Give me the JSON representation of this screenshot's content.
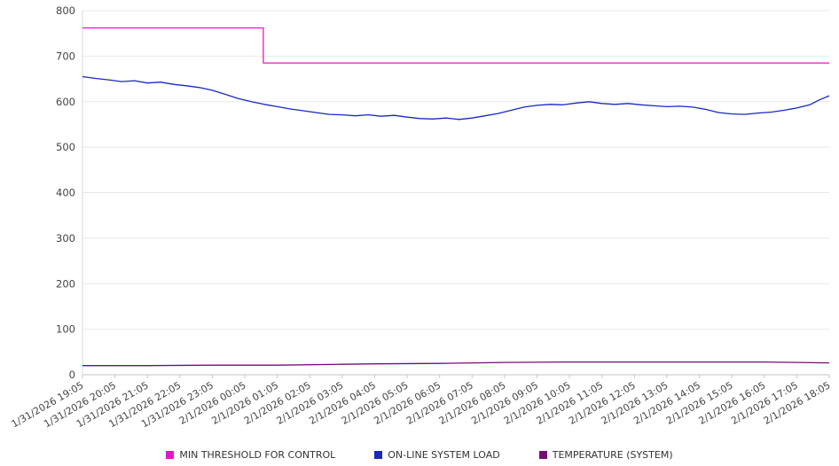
{
  "chart_data": {
    "type": "line",
    "title": "",
    "xlabel": "",
    "ylabel": "",
    "ylim": [
      0,
      800
    ],
    "y_tick_step": 100,
    "grid": true,
    "legend_position": "bottom",
    "categories": [
      "1/31/2026 19:05",
      "1/31/2026 20:05",
      "1/31/2026 21:05",
      "1/31/2026 22:05",
      "1/31/2026 23:05",
      "2/1/2026 00:05",
      "2/1/2026 01:05",
      "2/1/2026 02:05",
      "2/1/2026 03:05",
      "2/1/2026 04:05",
      "2/1/2026 05:05",
      "2/1/2026 06:05",
      "2/1/2026 07:05",
      "2/1/2026 08:05",
      "2/1/2026 09:05",
      "2/1/2026 10:05",
      "2/1/2026 11:05",
      "2/1/2026 12:05",
      "2/1/2026 13:05",
      "2/1/2026 14:05",
      "2/1/2026 15:05",
      "2/1/2026 16:05",
      "2/1/2026 17:05",
      "2/1/2026 18:05"
    ],
    "series": [
      {
        "name": "MIN THRESHOLD FOR CONTROL",
        "color": "#f012c8",
        "points": [
          [
            0,
            762
          ],
          [
            5.57,
            762
          ],
          [
            5.57,
            685
          ],
          [
            23,
            685
          ]
        ]
      },
      {
        "name": "ON-LINE SYSTEM LOAD",
        "color": "#1a27c4",
        "points": [
          [
            0,
            655
          ],
          [
            0.4,
            651
          ],
          [
            0.8,
            648
          ],
          [
            1.2,
            644
          ],
          [
            1.6,
            646
          ],
          [
            2,
            641
          ],
          [
            2.4,
            643
          ],
          [
            2.8,
            638
          ],
          [
            3.2,
            635
          ],
          [
            3.6,
            631
          ],
          [
            4,
            625
          ],
          [
            4.4,
            616
          ],
          [
            4.8,
            607
          ],
          [
            5.2,
            600
          ],
          [
            5.6,
            594
          ],
          [
            6,
            589
          ],
          [
            6.4,
            584
          ],
          [
            6.8,
            580
          ],
          [
            7.2,
            576
          ],
          [
            7.6,
            572
          ],
          [
            8,
            571
          ],
          [
            8.4,
            569
          ],
          [
            8.8,
            571
          ],
          [
            9.2,
            568
          ],
          [
            9.6,
            570
          ],
          [
            10,
            566
          ],
          [
            10.4,
            563
          ],
          [
            10.8,
            562
          ],
          [
            11.2,
            564
          ],
          [
            11.6,
            561
          ],
          [
            12,
            564
          ],
          [
            12.4,
            569
          ],
          [
            12.8,
            574
          ],
          [
            13.2,
            581
          ],
          [
            13.6,
            588
          ],
          [
            14,
            592
          ],
          [
            14.4,
            594
          ],
          [
            14.8,
            593
          ],
          [
            15.2,
            597
          ],
          [
            15.6,
            600
          ],
          [
            16,
            596
          ],
          [
            16.4,
            594
          ],
          [
            16.8,
            596
          ],
          [
            17.2,
            593
          ],
          [
            17.6,
            591
          ],
          [
            18,
            589
          ],
          [
            18.4,
            590
          ],
          [
            18.8,
            588
          ],
          [
            19.2,
            583
          ],
          [
            19.6,
            576
          ],
          [
            20,
            573
          ],
          [
            20.4,
            572
          ],
          [
            20.8,
            575
          ],
          [
            21.2,
            577
          ],
          [
            21.6,
            581
          ],
          [
            22,
            586
          ],
          [
            22.4,
            593
          ],
          [
            22.7,
            604
          ],
          [
            23,
            613
          ]
        ]
      },
      {
        "name": "TEMPERATURE (SYSTEM)",
        "color": "#750d75",
        "points": [
          [
            0,
            20
          ],
          [
            2,
            20
          ],
          [
            4,
            21
          ],
          [
            6,
            21
          ],
          [
            8,
            23
          ],
          [
            9,
            24
          ],
          [
            11,
            25
          ],
          [
            13,
            27
          ],
          [
            15,
            28
          ],
          [
            18,
            28
          ],
          [
            21,
            28
          ],
          [
            22,
            27
          ],
          [
            23,
            26
          ]
        ]
      }
    ]
  }
}
